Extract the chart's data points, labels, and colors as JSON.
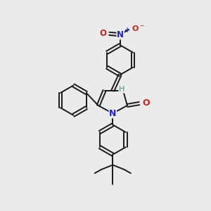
{
  "bg_color": "#ebebeb",
  "bond_color": "#1a1a1a",
  "N_color": "#2222cc",
  "O_color": "#cc2222",
  "H_color": "#3a9988",
  "bond_width": 1.4,
  "fig_w": 3.0,
  "fig_h": 3.0,
  "dpi": 100,
  "xlim": [
    0,
    10
  ],
  "ylim": [
    0,
    10
  ]
}
